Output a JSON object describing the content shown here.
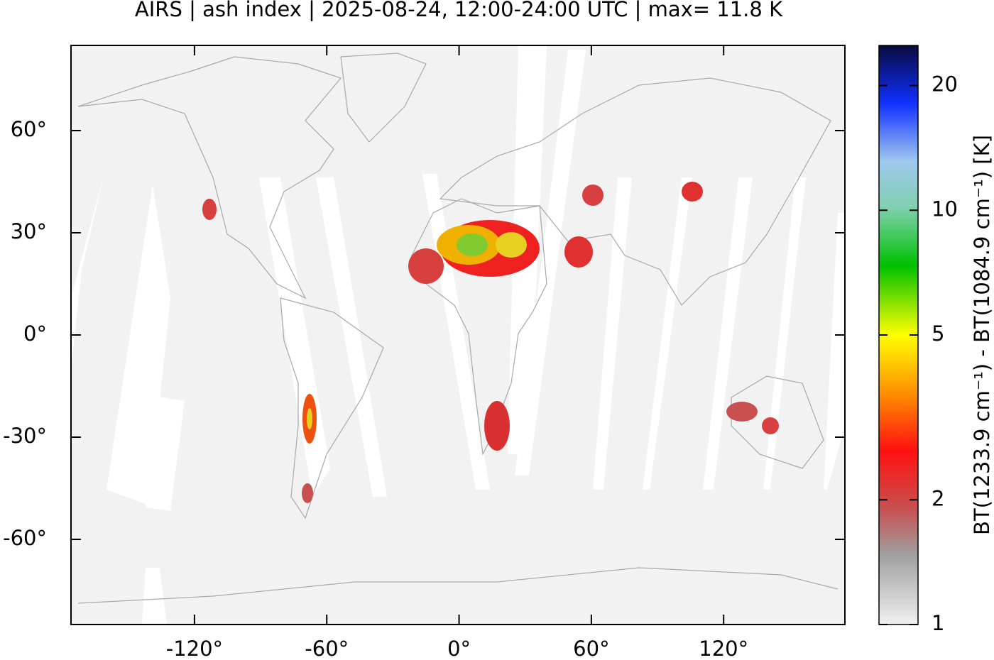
{
  "chart_data": {
    "type": "map",
    "title": "AIRS | ash index | 2025-08-24, 12:00-24:00 UTC | max= 11.8 K",
    "xlim": [
      -176,
      175
    ],
    "ylim": [
      -85,
      85
    ],
    "xticks": [
      {
        "value": -120,
        "label": "-120°"
      },
      {
        "value": -60,
        "label": "-60°"
      },
      {
        "value": 0,
        "label": "0°"
      },
      {
        "value": 60,
        "label": "60°"
      },
      {
        "value": 120,
        "label": "120°"
      }
    ],
    "yticks": [
      {
        "value": -60,
        "label": "-60°"
      },
      {
        "value": -30,
        "label": "-30°"
      },
      {
        "value": 0,
        "label": "0°"
      },
      {
        "value": 30,
        "label": "30°"
      },
      {
        "value": 60,
        "label": "60°"
      }
    ],
    "colorbar": {
      "label": "BT(1233.9 cm⁻¹) - BT(1084.9 cm⁻¹) [K]",
      "lim": [
        1,
        25
      ],
      "log": true,
      "ticks": [
        1,
        2,
        5,
        10,
        20
      ]
    }
  }
}
